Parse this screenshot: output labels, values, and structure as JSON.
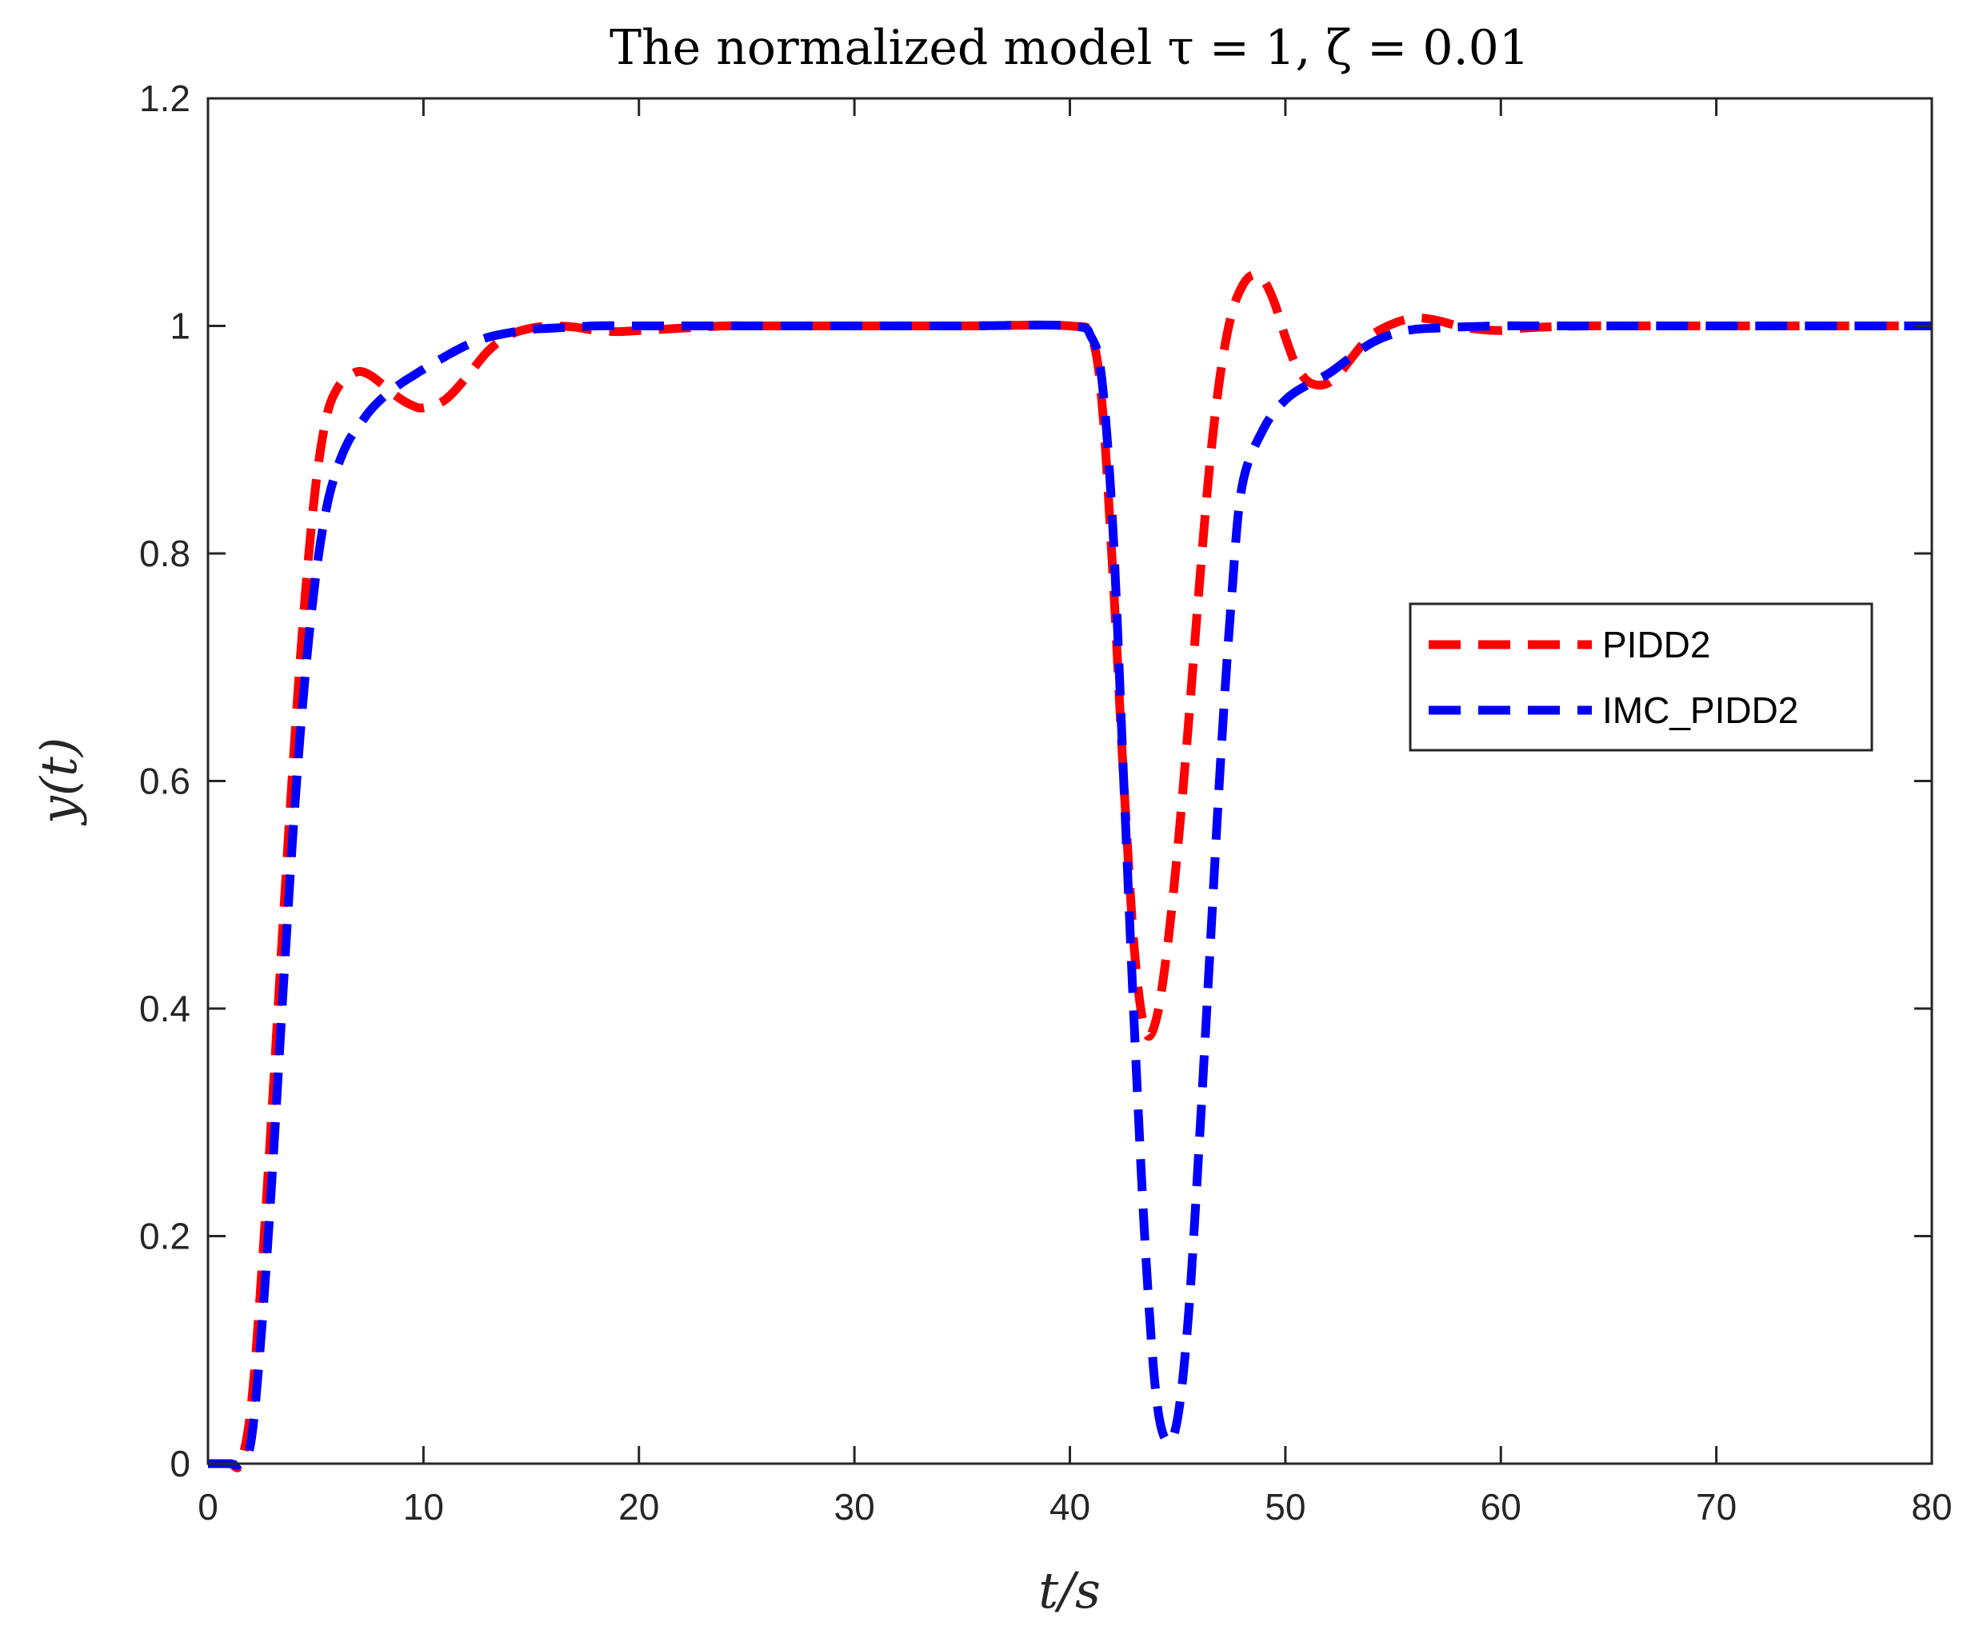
{
  "chart_data": {
    "type": "line",
    "title": "The normalized model τ = 1, ζ = 0.01",
    "xlabel": "t/s",
    "ylabel": "y(t)",
    "xlim": [
      0,
      80
    ],
    "ylim": [
      0,
      1.2
    ],
    "xticks": [
      0,
      10,
      20,
      30,
      40,
      50,
      60,
      70,
      80
    ],
    "yticks": [
      0,
      0.2,
      0.4,
      0.6,
      0.8,
      1,
      1.2
    ],
    "xtick_labels": [
      "0",
      "10",
      "20",
      "30",
      "40",
      "50",
      "60",
      "70",
      "80"
    ],
    "ytick_labels": [
      "0",
      "0.2",
      "0.4",
      "0.6",
      "0.8",
      "1",
      "1.2"
    ],
    "grid": false,
    "legend_position": "right-middle",
    "series": [
      {
        "name": "PIDD2",
        "color": "#ff0000",
        "style": "dashed",
        "x": [
          0,
          1,
          1.5,
          2,
          2.5,
          3,
          3.5,
          4,
          4.5,
          5,
          5.5,
          6,
          6.5,
          7,
          7.5,
          8,
          8.5,
          9,
          9.5,
          10,
          11,
          12,
          13,
          14,
          15,
          16,
          17,
          18,
          19,
          20,
          22,
          24,
          26,
          30,
          35,
          40,
          41,
          41.5,
          42,
          42.5,
          43,
          43.5,
          44,
          44.5,
          45,
          45.5,
          46,
          46.5,
          47,
          47.5,
          48,
          48.5,
          49,
          49.5,
          50,
          50.5,
          51,
          51.5,
          52,
          52.5,
          53,
          53.5,
          54,
          55,
          56,
          57,
          58,
          59,
          60,
          61,
          62,
          64,
          66,
          70,
          80
        ],
        "y": [
          0,
          0,
          0,
          0.05,
          0.17,
          0.32,
          0.48,
          0.63,
          0.76,
          0.86,
          0.92,
          0.945,
          0.955,
          0.96,
          0.957,
          0.95,
          0.942,
          0.935,
          0.93,
          0.928,
          0.935,
          0.955,
          0.978,
          0.992,
          0.998,
          1.0,
          0.999,
          0.996,
          0.995,
          0.996,
          0.998,
          1.0,
          1.0,
          1.0,
          1.0,
          1.0,
          0.99,
          0.93,
          0.78,
          0.6,
          0.45,
          0.38,
          0.39,
          0.45,
          0.54,
          0.65,
          0.77,
          0.88,
          0.96,
          1.01,
          1.035,
          1.045,
          1.04,
          1.02,
          0.99,
          0.965,
          0.952,
          0.948,
          0.95,
          0.958,
          0.97,
          0.982,
          0.992,
          1.002,
          1.007,
          1.005,
          1.0,
          0.997,
          0.996,
          0.998,
          0.999,
          1.0,
          1.0,
          1.0,
          1.0
        ]
      },
      {
        "name": "IMC_PIDD2",
        "color": "#0000ff",
        "style": "dashed",
        "x": [
          0,
          1,
          1.5,
          2,
          2.5,
          3,
          3.5,
          4,
          4.5,
          5,
          5.5,
          6,
          6.5,
          7,
          7.5,
          8,
          8.5,
          9,
          9.5,
          10,
          11,
          12,
          13,
          14,
          15,
          16,
          18,
          20,
          22,
          25,
          30,
          35,
          40,
          41,
          41.5,
          42,
          42.5,
          43,
          43.5,
          44,
          44.5,
          45,
          45.5,
          46,
          46.5,
          47,
          47.5,
          48,
          49,
          50,
          51,
          52,
          53,
          54,
          55,
          56,
          57,
          58,
          60,
          62,
          65,
          70,
          80
        ],
        "y": [
          0,
          0,
          0,
          0.02,
          0.12,
          0.26,
          0.42,
          0.57,
          0.69,
          0.78,
          0.84,
          0.875,
          0.898,
          0.912,
          0.925,
          0.935,
          0.943,
          0.95,
          0.956,
          0.962,
          0.973,
          0.983,
          0.99,
          0.994,
          0.997,
          0.998,
          1.0,
          1.0,
          1.0,
          1.0,
          1.0,
          1.0,
          1.0,
          0.99,
          0.95,
          0.82,
          0.6,
          0.38,
          0.19,
          0.06,
          0.02,
          0.04,
          0.13,
          0.28,
          0.45,
          0.62,
          0.76,
          0.86,
          0.91,
          0.935,
          0.948,
          0.958,
          0.972,
          0.985,
          0.993,
          0.997,
          0.998,
          0.999,
          1.0,
          1.0,
          1.0,
          1.0,
          1.0
        ]
      }
    ]
  }
}
